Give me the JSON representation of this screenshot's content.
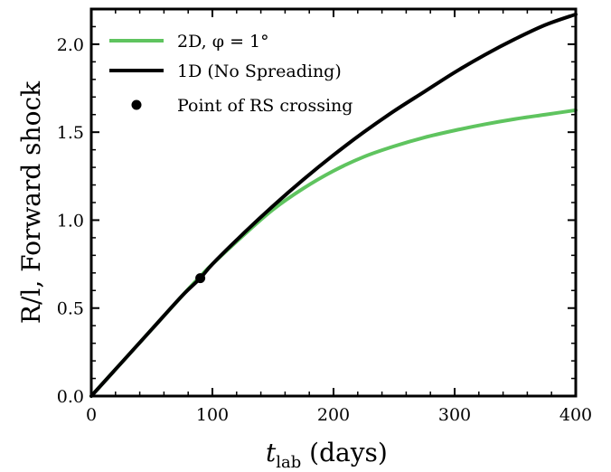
{
  "chart_data": {
    "type": "line",
    "xlabel_main": "t",
    "xlabel_sub": "lab",
    "xlabel_unit": " (days)",
    "ylabel": "R/l, Forward shock",
    "xlim": [
      0,
      400
    ],
    "ylim": [
      0,
      2.2
    ],
    "xticks": [
      "0",
      "100",
      "200",
      "300",
      "400"
    ],
    "yticks": [
      "0.0",
      "0.5",
      "1.0",
      "1.5",
      "2.0"
    ],
    "grid": false,
    "legend_position": "top-left",
    "series": [
      {
        "name": "2D, φ = 1°",
        "color": "#5fc45f",
        "x": [
          0,
          25,
          50,
          75,
          90,
          100,
          125,
          150,
          175,
          200,
          225,
          250,
          275,
          300,
          325,
          350,
          375,
          400
        ],
        "y": [
          0,
          0.19,
          0.38,
          0.57,
          0.68,
          0.75,
          0.91,
          1.06,
          1.18,
          1.28,
          1.36,
          1.42,
          1.47,
          1.51,
          1.545,
          1.575,
          1.6,
          1.625
        ]
      },
      {
        "name": "1D (No Spreading)",
        "color": "#000000",
        "x": [
          0,
          25,
          50,
          75,
          90,
          100,
          125,
          150,
          175,
          200,
          225,
          250,
          275,
          300,
          325,
          350,
          375,
          400
        ],
        "y": [
          0,
          0.19,
          0.38,
          0.57,
          0.67,
          0.75,
          0.92,
          1.08,
          1.23,
          1.37,
          1.5,
          1.62,
          1.73,
          1.84,
          1.94,
          2.03,
          2.11,
          2.17
        ]
      }
    ],
    "marker": {
      "name": "Point of RS crossing",
      "color": "#000000",
      "x": 90,
      "y": 0.67
    }
  }
}
